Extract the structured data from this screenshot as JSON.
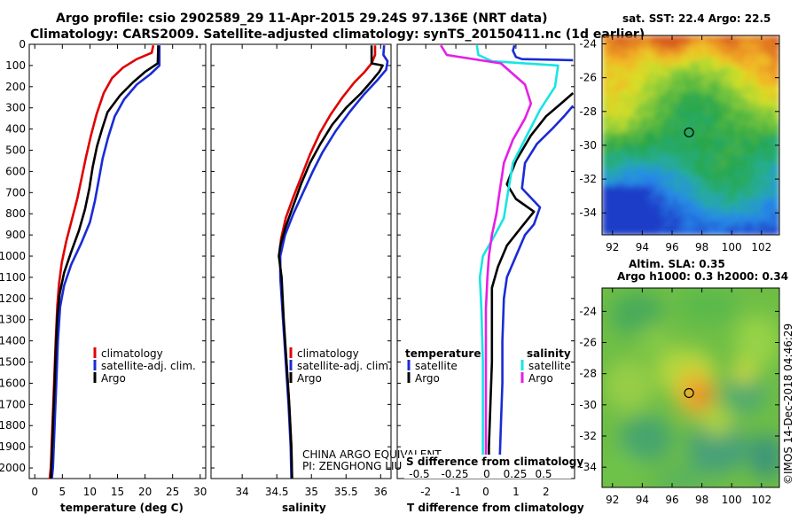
{
  "header": {
    "line1": "Argo profile: csio 2902589_29 11-Apr-2015 29.24S 97.136E (NRT data)",
    "line2": "Climatology: CARS2009. Satellite-adjusted climatology: synTS_20150411.nc (1d earlier)"
  },
  "colors": {
    "climatology": "#e00000",
    "satellite": "#1a2bd6",
    "argo": "#000000",
    "sal_satellite": "#19e4e4",
    "sal_argo": "#e61ee6"
  },
  "chart_data": [
    {
      "id": "temperature",
      "type": "line",
      "xlabel": "temperature (deg C)",
      "xlim": [
        -1,
        31
      ],
      "xticks": [
        0,
        5,
        10,
        15,
        20,
        25,
        30
      ],
      "ylim": [
        2050,
        0
      ],
      "yticks": [
        0,
        100,
        200,
        300,
        400,
        500,
        600,
        700,
        800,
        900,
        1000,
        1100,
        1200,
        1300,
        1400,
        1500,
        1600,
        1700,
        1800,
        1900,
        2000
      ],
      "legend": [
        "climatology",
        "satellite-adj. clim.",
        "Argo"
      ],
      "series": [
        {
          "name": "climatology",
          "color": "#e00000",
          "points": [
            [
              21.5,
              5
            ],
            [
              21.2,
              40
            ],
            [
              18.5,
              70
            ],
            [
              16,
              110
            ],
            [
              14,
              160
            ],
            [
              12.5,
              230
            ],
            [
              11.2,
              330
            ],
            [
              10.2,
              430
            ],
            [
              9.3,
              530
            ],
            [
              8.5,
              630
            ],
            [
              7.7,
              730
            ],
            [
              6.7,
              830
            ],
            [
              5.7,
              930
            ],
            [
              4.9,
              1030
            ],
            [
              4.4,
              1130
            ],
            [
              4.1,
              1230
            ],
            [
              3.8,
              1400
            ],
            [
              3.5,
              1600
            ],
            [
              3.2,
              1800
            ],
            [
              2.9,
              2000
            ],
            [
              2.7,
              2050
            ]
          ]
        },
        {
          "name": "satellite-adj. clim.",
          "color": "#1a2bd6",
          "points": [
            [
              22.6,
              5
            ],
            [
              22.6,
              100
            ],
            [
              21,
              140
            ],
            [
              18.5,
              190
            ],
            [
              16.2,
              260
            ],
            [
              14.5,
              340
            ],
            [
              13.3,
              440
            ],
            [
              12.3,
              540
            ],
            [
              11.6,
              640
            ],
            [
              10.9,
              740
            ],
            [
              10,
              840
            ],
            [
              8.4,
              940
            ],
            [
              6.6,
              1040
            ],
            [
              5.3,
              1140
            ],
            [
              4.6,
              1240
            ],
            [
              4.2,
              1400
            ],
            [
              3.9,
              1600
            ],
            [
              3.6,
              1800
            ],
            [
              3.3,
              2000
            ],
            [
              3.1,
              2050
            ]
          ]
        },
        {
          "name": "Argo",
          "color": "#000000",
          "points": [
            [
              22.4,
              5
            ],
            [
              22.3,
              90
            ],
            [
              20,
              130
            ],
            [
              17.8,
              180
            ],
            [
              15.5,
              240
            ],
            [
              13.2,
              320
            ],
            [
              12.2,
              400
            ],
            [
              11.3,
              480
            ],
            [
              10.5,
              580
            ],
            [
              9.9,
              680
            ],
            [
              9.1,
              780
            ],
            [
              8,
              880
            ],
            [
              6.6,
              980
            ],
            [
              5.3,
              1080
            ],
            [
              4.5,
              1180
            ],
            [
              4.1,
              1280
            ],
            [
              3.8,
              1450
            ],
            [
              3.6,
              1600
            ],
            [
              3.3,
              1800
            ],
            [
              3,
              2000
            ],
            [
              2.9,
              2050
            ]
          ]
        }
      ]
    },
    {
      "id": "salinity",
      "type": "line",
      "xlabel": "salinity",
      "xlim": [
        33.55,
        36.15
      ],
      "xticks": [
        34,
        34.5,
        35,
        35.5,
        36
      ],
      "xticklabels": [
        "34",
        "34.5",
        "35",
        "35.5",
        "36"
      ],
      "ylim": [
        2050,
        0
      ],
      "legend": [
        "climatology",
        "satellite-adj. clim.",
        "Argo"
      ],
      "annotation": [
        "CHINA ARGO EQUIVALENT",
        "PI: ZENGHONG LIU"
      ],
      "series": [
        {
          "name": "climatology",
          "color": "#e00000",
          "points": [
            [
              35.92,
              5
            ],
            [
              35.92,
              50
            ],
            [
              35.87,
              90
            ],
            [
              35.77,
              130
            ],
            [
              35.62,
              180
            ],
            [
              35.45,
              250
            ],
            [
              35.28,
              330
            ],
            [
              35.12,
              420
            ],
            [
              34.98,
              520
            ],
            [
              34.86,
              620
            ],
            [
              34.74,
              720
            ],
            [
              34.63,
              820
            ],
            [
              34.56,
              920
            ],
            [
              34.54,
              1000
            ],
            [
              34.56,
              1100
            ],
            [
              34.59,
              1300
            ],
            [
              34.64,
              1500
            ],
            [
              34.68,
              1700
            ],
            [
              34.71,
              1900
            ],
            [
              34.72,
              2050
            ]
          ]
        },
        {
          "name": "satellite-adj. clim.",
          "color": "#1a2bd6",
          "points": [
            [
              36.05,
              5
            ],
            [
              36.04,
              50
            ],
            [
              36.1,
              80
            ],
            [
              36.08,
              120
            ],
            [
              35.95,
              170
            ],
            [
              35.75,
              240
            ],
            [
              35.55,
              320
            ],
            [
              35.35,
              410
            ],
            [
              35.16,
              510
            ],
            [
              35.02,
              600
            ],
            [
              34.88,
              700
            ],
            [
              34.74,
              800
            ],
            [
              34.62,
              900
            ],
            [
              34.55,
              1000
            ],
            [
              34.55,
              1100
            ],
            [
              34.59,
              1300
            ],
            [
              34.63,
              1500
            ],
            [
              34.67,
              1700
            ],
            [
              34.7,
              1900
            ],
            [
              34.71,
              2050
            ]
          ]
        },
        {
          "name": "Argo",
          "color": "#000000",
          "points": [
            [
              35.87,
              5
            ],
            [
              35.87,
              90
            ],
            [
              36.03,
              100
            ],
            [
              35.98,
              130
            ],
            [
              35.88,
              170
            ],
            [
              35.72,
              230
            ],
            [
              35.5,
              300
            ],
            [
              35.3,
              380
            ],
            [
              35.13,
              470
            ],
            [
              34.98,
              560
            ],
            [
              34.85,
              660
            ],
            [
              34.74,
              760
            ],
            [
              34.62,
              870
            ],
            [
              34.55,
              950
            ],
            [
              34.53,
              1000
            ],
            [
              34.57,
              1100
            ],
            [
              34.6,
              1300
            ],
            [
              34.64,
              1500
            ],
            [
              34.68,
              1700
            ],
            [
              34.71,
              1900
            ],
            [
              34.72,
              2050
            ]
          ]
        }
      ]
    },
    {
      "id": "differences",
      "type": "line",
      "xlabel": "T difference from climatology",
      "xlim": [
        -2.95,
        2.95
      ],
      "xticks": [
        -2,
        -1,
        0,
        1,
        2
      ],
      "top_axis_label": "S difference from climatology",
      "top_ticks": [
        "-0.5",
        "-0.25",
        "0",
        "0.25",
        "0.5"
      ],
      "ylim": [
        2050,
        0
      ],
      "legend_left_title": "temperature",
      "legend_right_title": "salinity",
      "legend": [
        "satellite",
        "Argo",
        "satellite",
        "Argo"
      ],
      "series": [
        {
          "name": "T satellite",
          "color": "#1a2bd6",
          "points": [
            [
              2.9,
              75
            ],
            [
              1.2,
              70
            ],
            [
              1.0,
              60
            ],
            [
              0.9,
              30
            ],
            [
              0.95,
              5
            ]
          ]
        },
        {
          "name": "T satellite (main)",
          "color": "#1a2bd6",
          "points": [
            [
              2.9,
              290
            ],
            [
              2.6,
              340
            ],
            [
              2.2,
              400
            ],
            [
              1.7,
              470
            ],
            [
              1.3,
              560
            ],
            [
              1.2,
              680
            ],
            [
              1.8,
              770
            ],
            [
              1.6,
              850
            ],
            [
              1.3,
              900
            ],
            [
              1.0,
              1000
            ],
            [
              0.7,
              1100
            ],
            [
              0.6,
              1200
            ],
            [
              0.55,
              1400
            ],
            [
              0.55,
              1600
            ],
            [
              0.5,
              1800
            ],
            [
              0.45,
              2000
            ],
            [
              0.45,
              2050
            ]
          ]
        },
        {
          "name": "T Argo",
          "color": "#000000",
          "points": [
            [
              2.9,
              230
            ],
            [
              2.5,
              280
            ],
            [
              2.0,
              340
            ],
            [
              1.5,
              430
            ],
            [
              1.0,
              550
            ],
            [
              0.7,
              660
            ],
            [
              1.0,
              730
            ],
            [
              1.6,
              790
            ],
            [
              1.2,
              860
            ],
            [
              0.7,
              950
            ],
            [
              0.4,
              1050
            ],
            [
              0.2,
              1150
            ],
            [
              0.2,
              1300
            ],
            [
              0.2,
              1500
            ],
            [
              0.15,
              1700
            ],
            [
              0.1,
              1900
            ],
            [
              0.1,
              2050
            ]
          ]
        },
        {
          "name": "S satellite",
          "color": "#19e4e4",
          "points": [
            [
              -0.3,
              5
            ],
            [
              -0.25,
              50
            ],
            [
              0.2,
              80
            ],
            [
              2.4,
              100
            ],
            [
              2.3,
              200
            ],
            [
              1.8,
              310
            ],
            [
              1.4,
              420
            ],
            [
              0.9,
              560
            ],
            [
              0.7,
              730
            ],
            [
              0.6,
              820
            ],
            [
              0.3,
              900
            ],
            [
              -0.1,
              1000
            ],
            [
              -0.2,
              1100
            ],
            [
              -0.15,
              1250
            ],
            [
              -0.1,
              1500
            ],
            [
              -0.1,
              1700
            ],
            [
              -0.1,
              1900
            ],
            [
              -0.1,
              2050
            ]
          ]
        },
        {
          "name": "S Argo",
          "color": "#e61ee6",
          "points": [
            [
              -1.5,
              5
            ],
            [
              -1.3,
              50
            ],
            [
              0.5,
              90
            ],
            [
              1.3,
              190
            ],
            [
              1.5,
              280
            ],
            [
              1.3,
              350
            ],
            [
              0.9,
              450
            ],
            [
              0.6,
              560
            ],
            [
              0.45,
              700
            ],
            [
              0.35,
              800
            ],
            [
              0.2,
              900
            ],
            [
              0.1,
              1000
            ],
            [
              0.05,
              1100
            ],
            [
              0.0,
              1250
            ],
            [
              0.0,
              1500
            ],
            [
              0.0,
              1700
            ],
            [
              0.0,
              1900
            ],
            [
              0.0,
              2050
            ]
          ]
        }
      ]
    },
    {
      "id": "sst_map",
      "type": "heatmap",
      "title": "sat. SST: 22.4 Argo: 22.5",
      "xlim": [
        91.3,
        103.2
      ],
      "ylim": [
        -35.3,
        -23.5
      ],
      "xticks": [
        92,
        94,
        96,
        98,
        100,
        102
      ],
      "yticks": [
        -24,
        -26,
        -28,
        -30,
        -32,
        -34
      ],
      "marker": [
        97.136,
        -29.24
      ]
    },
    {
      "id": "sla_map",
      "type": "heatmap",
      "title_line1": "Altim. SLA: 0.35",
      "title_line2": "Argo h1000: 0.3 h2000: 0.34",
      "xlim": [
        91.3,
        103.2
      ],
      "ylim": [
        -35.3,
        -22.5
      ],
      "xticks": [
        92,
        94,
        96,
        98,
        100,
        102
      ],
      "yticks": [
        -24,
        -26,
        -28,
        -30,
        -32,
        -34
      ],
      "marker": [
        97.136,
        -29.24
      ]
    }
  ],
  "footer": {
    "copyright": "©IMOS 14-Dec-2018 04:46:29"
  }
}
